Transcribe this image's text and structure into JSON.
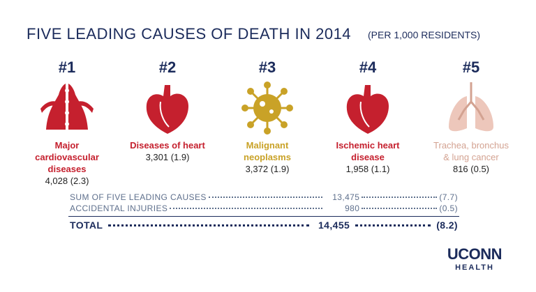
{
  "header": {
    "title": "FIVE LEADING CAUSES OF DEATH IN 2014",
    "subtitle": "(PER 1,000 RESIDENTS)"
  },
  "causes": [
    {
      "rank": "#1",
      "label": "Major cardiovascular diseases",
      "value": "4,028 (2.3)"
    },
    {
      "rank": "#2",
      "label": "Diseases of heart",
      "value": "3,301 (1.9)"
    },
    {
      "rank": "#3",
      "label": "Malignant neoplasms",
      "value": "3,372 (1.9)"
    },
    {
      "rank": "#4",
      "label": "Ischemic heart disease",
      "value": "1,958 (1.1)"
    },
    {
      "rank": "#5",
      "label": "Trachea, bronchus & lung cancer",
      "value": "816 (0.5)"
    }
  ],
  "summary": [
    {
      "label": "SUM OF FIVE LEADING CAUSES",
      "count": "13,475",
      "rate": "(7.7)"
    },
    {
      "label": "ACCIDENTAL INJURIES",
      "count": "980",
      "rate": "(0.5)"
    },
    {
      "label": "TOTAL",
      "count": "14,455",
      "rate": "(8.2)"
    }
  ],
  "logo": {
    "name": "UCONN",
    "sub": "HEALTH"
  }
}
